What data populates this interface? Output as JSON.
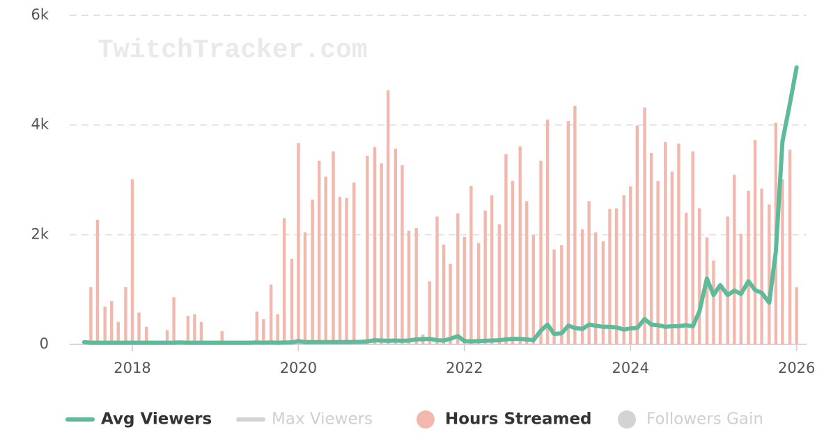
{
  "chart_data": {
    "type": "combo",
    "watermark": "TwitchTracker.com",
    "x": [
      2017.42,
      2017.5,
      2017.58,
      2017.67,
      2017.75,
      2017.83,
      2017.92,
      2018.0,
      2018.08,
      2018.17,
      2018.25,
      2018.33,
      2018.42,
      2018.5,
      2018.58,
      2018.67,
      2018.75,
      2018.83,
      2018.92,
      2019.0,
      2019.08,
      2019.17,
      2019.25,
      2019.33,
      2019.42,
      2019.5,
      2019.58,
      2019.67,
      2019.75,
      2019.83,
      2019.92,
      2020.0,
      2020.08,
      2020.17,
      2020.25,
      2020.33,
      2020.42,
      2020.5,
      2020.58,
      2020.67,
      2020.75,
      2020.83,
      2020.92,
      2021.0,
      2021.08,
      2021.17,
      2021.25,
      2021.33,
      2021.42,
      2021.5,
      2021.58,
      2021.67,
      2021.75,
      2021.83,
      2021.92,
      2022.0,
      2022.08,
      2022.17,
      2022.25,
      2022.33,
      2022.42,
      2022.5,
      2022.58,
      2022.67,
      2022.75,
      2022.83,
      2022.92,
      2023.0,
      2023.08,
      2023.17,
      2023.25,
      2023.33,
      2023.42,
      2023.5,
      2023.58,
      2023.67,
      2023.75,
      2023.83,
      2023.92,
      2024.0,
      2024.08,
      2024.17,
      2024.25,
      2024.33,
      2024.42,
      2024.5,
      2024.58,
      2024.67,
      2024.75,
      2024.83,
      2024.92,
      2025.0,
      2025.08,
      2025.17,
      2025.25,
      2025.33,
      2025.42,
      2025.5,
      2025.58,
      2025.67,
      2025.75,
      2025.83,
      2025.92,
      2026.0
    ],
    "series": [
      {
        "name": "Avg Viewers",
        "type": "line",
        "color": "#5dbb9a",
        "visible": true,
        "values": [
          40,
          30,
          30,
          30,
          30,
          30,
          30,
          30,
          30,
          30,
          30,
          30,
          30,
          30,
          35,
          30,
          30,
          30,
          30,
          30,
          30,
          30,
          30,
          30,
          30,
          35,
          30,
          35,
          30,
          35,
          35,
          60,
          40,
          40,
          40,
          40,
          40,
          40,
          40,
          45,
          45,
          55,
          75,
          70,
          65,
          70,
          65,
          70,
          90,
          95,
          100,
          75,
          70,
          100,
          150,
          60,
          55,
          60,
          65,
          70,
          75,
          90,
          100,
          100,
          90,
          75,
          250,
          360,
          190,
          200,
          340,
          300,
          280,
          360,
          340,
          320,
          320,
          310,
          270,
          290,
          300,
          460,
          360,
          350,
          320,
          330,
          330,
          350,
          330,
          600,
          1200,
          900,
          1080,
          900,
          980,
          920,
          1150,
          990,
          940,
          760,
          1700,
          3700,
          4400,
          5050
        ]
      },
      {
        "name": "Max Viewers",
        "type": "line",
        "color": "#d3d3d3",
        "visible": false
      },
      {
        "name": "Hours Streamed",
        "type": "bar",
        "color": "#f2b8ae",
        "visible": true,
        "values": [
          0,
          1040,
          2270,
          690,
          790,
          410,
          1040,
          3010,
          580,
          320,
          0,
          0,
          260,
          860,
          0,
          520,
          550,
          410,
          0,
          0,
          240,
          0,
          0,
          0,
          0,
          600,
          460,
          1090,
          550,
          2300,
          1560,
          3670,
          2040,
          2640,
          3350,
          3060,
          3520,
          2690,
          2670,
          2950,
          0,
          3440,
          3600,
          3300,
          4630,
          3570,
          3270,
          2070,
          2120,
          180,
          1150,
          2330,
          1820,
          1470,
          2390,
          1960,
          2890,
          1850,
          2440,
          2720,
          2190,
          3470,
          2980,
          3610,
          2610,
          1990,
          3350,
          4100,
          1730,
          1810,
          4070,
          4350,
          2100,
          2610,
          2040,
          1880,
          2470,
          2480,
          2720,
          2880,
          3990,
          4320,
          3490,
          2980,
          3690,
          3150,
          3660,
          2400,
          3520,
          2480,
          1950,
          1530,
          1100,
          2330,
          3090,
          2020,
          2800,
          3730,
          2840,
          2550,
          4040,
          3010,
          3550,
          1040
        ]
      },
      {
        "name": "Followers Gain",
        "type": "bar",
        "color": "#d3d3d3",
        "visible": false
      }
    ],
    "xlim": [
      2017.245,
      2026.12
    ],
    "xticks": [
      2018,
      2020,
      2022,
      2024,
      2026
    ],
    "ylim": [
      0,
      6000
    ],
    "yticks": [
      0,
      {
        "value": 2000,
        "label": "2k"
      },
      {
        "value": 4000,
        "label": "4k"
      },
      {
        "value": 6000,
        "label": "6k"
      }
    ],
    "grid": true
  }
}
